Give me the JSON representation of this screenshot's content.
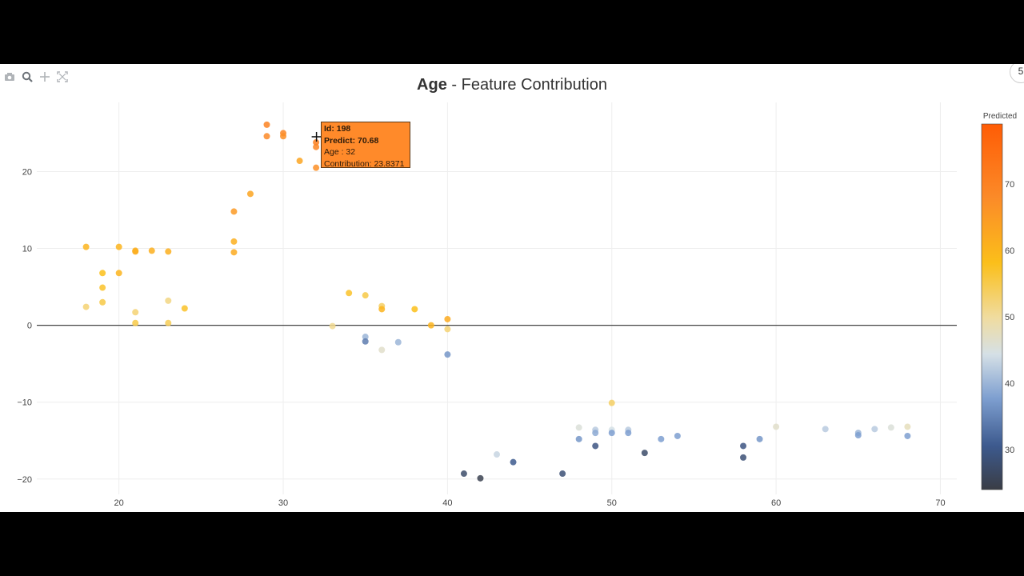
{
  "modebar": {
    "icons": [
      "camera-icon",
      "zoom-icon",
      "pan-icon",
      "autoscale-icon"
    ]
  },
  "corner_button": {
    "label": "5"
  },
  "tooltip": {
    "id_line": "Id: 198",
    "predict_line": "Predict: 70.68",
    "age_line": "Age : 32",
    "contrib_line": "Contribution: 23.8371"
  },
  "chart_data": {
    "type": "scatter",
    "title_bold": "Age",
    "title_rest": " - Feature Contribution",
    "xlabel": "",
    "ylabel": "",
    "xlim": [
      15,
      71
    ],
    "ylim": [
      -22,
      29
    ],
    "xticks": [
      20,
      30,
      40,
      50,
      60,
      70
    ],
    "yticks": [
      -20,
      -10,
      0,
      10,
      20
    ],
    "grid": true,
    "zero_line": true,
    "colorbar": {
      "title": "Predicted",
      "min": 24,
      "max": 79,
      "ticks": [
        30,
        40,
        50,
        60,
        70
      ]
    },
    "points": [
      {
        "x": 18,
        "y": 10.2,
        "c": 60
      },
      {
        "x": 18,
        "y": 2.4,
        "c": 52
      },
      {
        "x": 19,
        "y": 6.8,
        "c": 58
      },
      {
        "x": 19,
        "y": 4.9,
        "c": 57
      },
      {
        "x": 19,
        "y": 3.0,
        "c": 55
      },
      {
        "x": 20,
        "y": 10.2,
        "c": 60
      },
      {
        "x": 20,
        "y": 6.8,
        "c": 60
      },
      {
        "x": 21,
        "y": 9.6,
        "c": 62
      },
      {
        "x": 21,
        "y": 9.7,
        "c": 61
      },
      {
        "x": 21,
        "y": 1.7,
        "c": 52
      },
      {
        "x": 21,
        "y": 0.3,
        "c": 55
      },
      {
        "x": 22,
        "y": 9.7,
        "c": 61
      },
      {
        "x": 23,
        "y": 9.6,
        "c": 61
      },
      {
        "x": 23,
        "y": 3.2,
        "c": 51
      },
      {
        "x": 23,
        "y": 0.3,
        "c": 54
      },
      {
        "x": 24,
        "y": 2.2,
        "c": 57
      },
      {
        "x": 27,
        "y": 14.8,
        "c": 65
      },
      {
        "x": 27,
        "y": 10.9,
        "c": 61
      },
      {
        "x": 27,
        "y": 9.5,
        "c": 62
      },
      {
        "x": 28,
        "y": 17.1,
        "c": 63
      },
      {
        "x": 29,
        "y": 26.1,
        "c": 70
      },
      {
        "x": 29,
        "y": 24.6,
        "c": 68
      },
      {
        "x": 30,
        "y": 25.0,
        "c": 69
      },
      {
        "x": 30,
        "y": 24.6,
        "c": 67
      },
      {
        "x": 31,
        "y": 21.4,
        "c": 63
      },
      {
        "x": 32,
        "y": 23.8,
        "c": 70.68
      },
      {
        "x": 32,
        "y": 23.2,
        "c": 69
      },
      {
        "x": 32,
        "y": 20.5,
        "c": 67
      },
      {
        "x": 33,
        "y": -0.1,
        "c": 50
      },
      {
        "x": 34,
        "y": 4.2,
        "c": 57
      },
      {
        "x": 35,
        "y": 3.9,
        "c": 55
      },
      {
        "x": 35,
        "y": -1.5,
        "c": 40
      },
      {
        "x": 35,
        "y": -2.1,
        "c": 34
      },
      {
        "x": 36,
        "y": 2.5,
        "c": 53
      },
      {
        "x": 36,
        "y": 2.1,
        "c": 60
      },
      {
        "x": 36,
        "y": -3.2,
        "c": 46
      },
      {
        "x": 37,
        "y": -2.2,
        "c": 40
      },
      {
        "x": 38,
        "y": 2.1,
        "c": 58
      },
      {
        "x": 39,
        "y": 0.0,
        "c": 60
      },
      {
        "x": 40,
        "y": 0.8,
        "c": 62
      },
      {
        "x": 40,
        "y": -0.5,
        "c": 52
      },
      {
        "x": 40,
        "y": -3.8,
        "c": 37
      },
      {
        "x": 41,
        "y": -19.3,
        "c": 27
      },
      {
        "x": 42,
        "y": -19.9,
        "c": 25
      },
      {
        "x": 43,
        "y": -16.8,
        "c": 43
      },
      {
        "x": 44,
        "y": -17.8,
        "c": 30
      },
      {
        "x": 47,
        "y": -19.3,
        "c": 28
      },
      {
        "x": 48,
        "y": -13.3,
        "c": 45
      },
      {
        "x": 48,
        "y": -14.8,
        "c": 37
      },
      {
        "x": 49,
        "y": -13.6,
        "c": 42
      },
      {
        "x": 49,
        "y": -14.0,
        "c": 39
      },
      {
        "x": 49,
        "y": -15.7,
        "c": 29
      },
      {
        "x": 50,
        "y": -10.1,
        "c": 53
      },
      {
        "x": 50,
        "y": -13.6,
        "c": 44
      },
      {
        "x": 50,
        "y": -14.0,
        "c": 38
      },
      {
        "x": 51,
        "y": -13.6,
        "c": 42
      },
      {
        "x": 51,
        "y": -14.0,
        "c": 38
      },
      {
        "x": 52,
        "y": -16.6,
        "c": 27
      },
      {
        "x": 53,
        "y": -14.8,
        "c": 38
      },
      {
        "x": 54,
        "y": -14.4,
        "c": 38
      },
      {
        "x": 58,
        "y": -15.7,
        "c": 29
      },
      {
        "x": 58,
        "y": -17.2,
        "c": 28
      },
      {
        "x": 59,
        "y": -14.8,
        "c": 37
      },
      {
        "x": 60,
        "y": -13.2,
        "c": 46
      },
      {
        "x": 63,
        "y": -13.5,
        "c": 42
      },
      {
        "x": 65,
        "y": -14.0,
        "c": 40
      },
      {
        "x": 65,
        "y": -14.3,
        "c": 38
      },
      {
        "x": 66,
        "y": -13.5,
        "c": 42
      },
      {
        "x": 67,
        "y": -13.3,
        "c": 45
      },
      {
        "x": 68,
        "y": -13.2,
        "c": 47
      },
      {
        "x": 68,
        "y": -14.4,
        "c": 38
      }
    ]
  }
}
